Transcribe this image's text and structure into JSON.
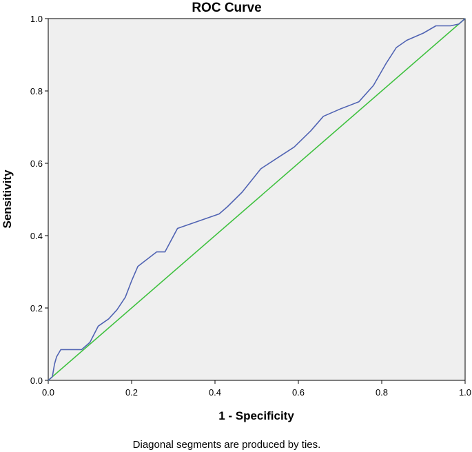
{
  "chart_data": {
    "type": "line",
    "title": "ROC Curve",
    "xlabel": "1 - Specificity",
    "ylabel": "Sensitivity",
    "footnote": "Diagonal segments are produced by ties.",
    "xlim": [
      0,
      1
    ],
    "ylim": [
      0,
      1
    ],
    "xticks": [
      "0.0",
      "0.2",
      "0.4",
      "0.6",
      "0.8",
      "1.0"
    ],
    "yticks": [
      "0.0",
      "0.2",
      "0.4",
      "0.6",
      "0.8",
      "1.0"
    ],
    "grid": false,
    "plot_background": "#efefef",
    "series": [
      {
        "color": "#5063b3",
        "points": [
          [
            0.0,
            0.0
          ],
          [
            0.01,
            0.01
          ],
          [
            0.015,
            0.045
          ],
          [
            0.02,
            0.065
          ],
          [
            0.03,
            0.085
          ],
          [
            0.08,
            0.085
          ],
          [
            0.1,
            0.105
          ],
          [
            0.12,
            0.15
          ],
          [
            0.145,
            0.17
          ],
          [
            0.165,
            0.195
          ],
          [
            0.185,
            0.23
          ],
          [
            0.2,
            0.275
          ],
          [
            0.215,
            0.315
          ],
          [
            0.26,
            0.355
          ],
          [
            0.28,
            0.355
          ],
          [
            0.31,
            0.42
          ],
          [
            0.36,
            0.44
          ],
          [
            0.41,
            0.46
          ],
          [
            0.43,
            0.48
          ],
          [
            0.465,
            0.52
          ],
          [
            0.51,
            0.585
          ],
          [
            0.55,
            0.615
          ],
          [
            0.59,
            0.645
          ],
          [
            0.63,
            0.69
          ],
          [
            0.66,
            0.73
          ],
          [
            0.7,
            0.75
          ],
          [
            0.745,
            0.77
          ],
          [
            0.78,
            0.815
          ],
          [
            0.81,
            0.875
          ],
          [
            0.835,
            0.92
          ],
          [
            0.86,
            0.94
          ],
          [
            0.9,
            0.96
          ],
          [
            0.93,
            0.98
          ],
          [
            0.965,
            0.98
          ],
          [
            0.985,
            0.985
          ],
          [
            1.0,
            1.0
          ]
        ]
      },
      {
        "color": "#3fc13f",
        "points": [
          [
            0.0,
            0.0
          ],
          [
            1.0,
            1.0
          ]
        ]
      }
    ]
  }
}
